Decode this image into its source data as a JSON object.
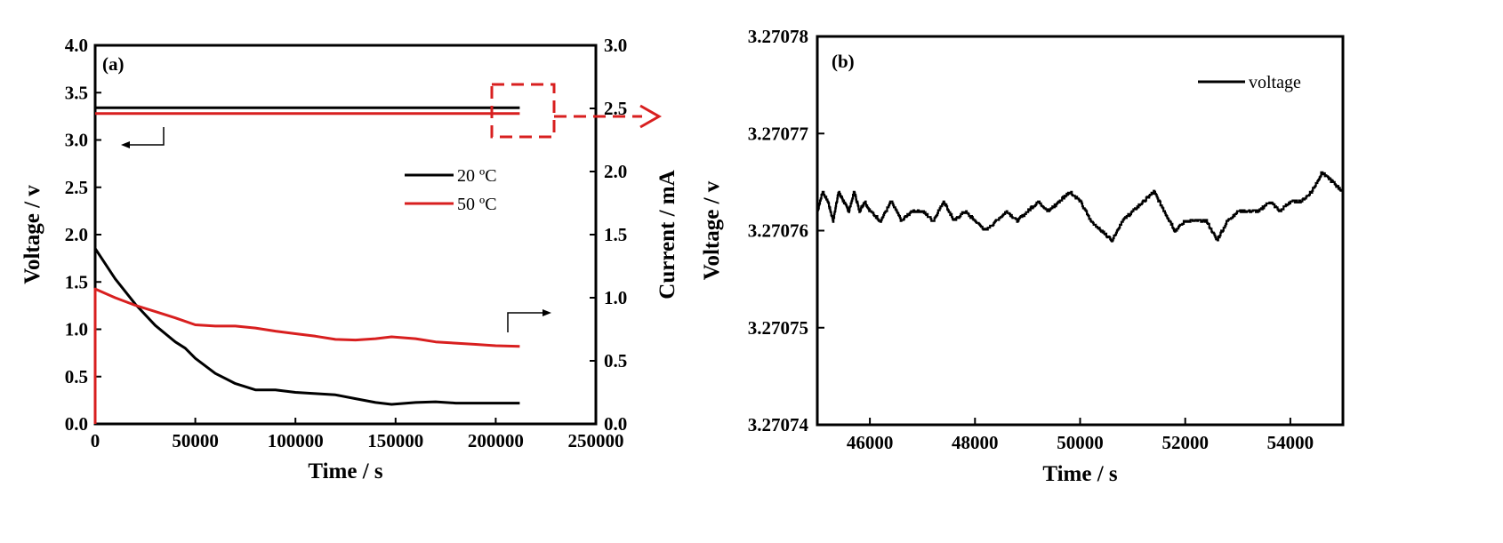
{
  "colors": {
    "series_20C": "#000000",
    "series_50C": "#d81f1f",
    "axes": "#000000",
    "callout": "#d81f1f"
  },
  "chart_data": [
    {
      "panel": "(a)",
      "type": "line",
      "xlabel": "Time / s",
      "ylabel_left": "Voltage / v",
      "ylabel_right": "Current / mA",
      "xlim": [
        0,
        250000
      ],
      "ylim_left": [
        0.0,
        4.0
      ],
      "ylim_right": [
        0.0,
        3.0
      ],
      "x_ticks": [
        "0",
        "50000",
        "100000",
        "150000",
        "200000",
        "250000"
      ],
      "y_left_ticks": [
        "0.0",
        "0.5",
        "1.0",
        "1.5",
        "2.0",
        "2.5",
        "3.0",
        "3.5",
        "4.0"
      ],
      "y_right_ticks": [
        "0.0",
        "0.5",
        "1.0",
        "1.5",
        "2.0",
        "2.5",
        "3.0"
      ],
      "legend_position": "middle-right",
      "grid": false,
      "series": [
        {
          "name": "20 ºC",
          "axis": "left",
          "quantity": "voltage",
          "color": "#000000",
          "x": [
            0,
            212000
          ],
          "y": [
            3.34,
            3.34
          ]
        },
        {
          "name": "50 ºC",
          "axis": "left",
          "quantity": "voltage",
          "color": "#d81f1f",
          "x": [
            0,
            212000
          ],
          "y": [
            3.28,
            3.28
          ]
        },
        {
          "name": "20 ºC",
          "axis": "right",
          "quantity": "current",
          "color": "#000000",
          "x": [
            0,
            10000,
            20000,
            30000,
            40000,
            45000,
            50000,
            60000,
            70000,
            80000,
            90000,
            100000,
            110000,
            120000,
            130000,
            140000,
            148000,
            160000,
            170000,
            180000,
            190000,
            200000,
            212000
          ],
          "y": [
            1.39,
            1.15,
            0.95,
            0.78,
            0.65,
            0.6,
            0.52,
            0.4,
            0.32,
            0.27,
            0.27,
            0.25,
            0.24,
            0.23,
            0.2,
            0.17,
            0.155,
            0.17,
            0.175,
            0.165,
            0.165,
            0.165,
            0.165
          ]
        },
        {
          "name": "50 ºC",
          "axis": "right",
          "quantity": "current",
          "color": "#d81f1f",
          "x": [
            0,
            10000,
            20000,
            30000,
            40000,
            50000,
            60000,
            70000,
            80000,
            90000,
            100000,
            110000,
            120000,
            130000,
            140000,
            148000,
            160000,
            170000,
            180000,
            190000,
            200000,
            212000
          ],
          "y": [
            1.07,
            1.0,
            0.94,
            0.89,
            0.84,
            0.785,
            0.775,
            0.775,
            0.76,
            0.735,
            0.715,
            0.695,
            0.67,
            0.665,
            0.675,
            0.69,
            0.675,
            0.65,
            0.64,
            0.63,
            0.62,
            0.615
          ]
        }
      ],
      "annotations": [
        "left-pointing arrow marks the voltage curves (left axis)",
        "right-pointing arrow marks the current curves (right axis)",
        "dashed red box at ~200000 s zoomed in panel (b)"
      ]
    },
    {
      "panel": "(b)",
      "type": "line",
      "xlabel": "Time / s",
      "ylabel": "Voltage / v",
      "xlim": [
        45000,
        55000
      ],
      "ylim": [
        3.27074,
        3.27078
      ],
      "x_ticks": [
        "46000",
        "48000",
        "50000",
        "52000",
        "54000"
      ],
      "y_ticks": [
        "3.27074",
        "3.27075",
        "3.27076",
        "3.27077",
        "3.27078"
      ],
      "legend_position": "top-right",
      "grid": false,
      "series": [
        {
          "name": "voltage",
          "color": "#000000",
          "x": [
            45000,
            45100,
            45200,
            45300,
            45400,
            45500,
            45600,
            45700,
            45800,
            45900,
            46000,
            46200,
            46400,
            46600,
            46800,
            47000,
            47200,
            47400,
            47600,
            47800,
            48000,
            48200,
            48400,
            48600,
            48800,
            49000,
            49200,
            49400,
            49600,
            49800,
            50000,
            50200,
            50400,
            50600,
            50800,
            51000,
            51200,
            51400,
            51600,
            51800,
            52000,
            52200,
            52400,
            52600,
            52800,
            53000,
            53200,
            53400,
            53600,
            53800,
            54000,
            54200,
            54400,
            54600,
            54800,
            55000
          ],
          "y": [
            3.270762,
            3.270764,
            3.270763,
            3.270761,
            3.270764,
            3.270763,
            3.270762,
            3.270764,
            3.270762,
            3.270763,
            3.270762,
            3.270761,
            3.270763,
            3.270761,
            3.270762,
            3.270762,
            3.270761,
            3.270763,
            3.270761,
            3.270762,
            3.270761,
            3.27076,
            3.270761,
            3.270762,
            3.270761,
            3.270762,
            3.270763,
            3.270762,
            3.270763,
            3.270764,
            3.270763,
            3.270761,
            3.27076,
            3.270759,
            3.270761,
            3.270762,
            3.270763,
            3.270764,
            3.270762,
            3.27076,
            3.270761,
            3.270761,
            3.270761,
            3.270759,
            3.270761,
            3.270762,
            3.270762,
            3.270762,
            3.270763,
            3.270762,
            3.270763,
            3.270763,
            3.270764,
            3.270766,
            3.270765,
            3.270764
          ]
        }
      ]
    }
  ]
}
